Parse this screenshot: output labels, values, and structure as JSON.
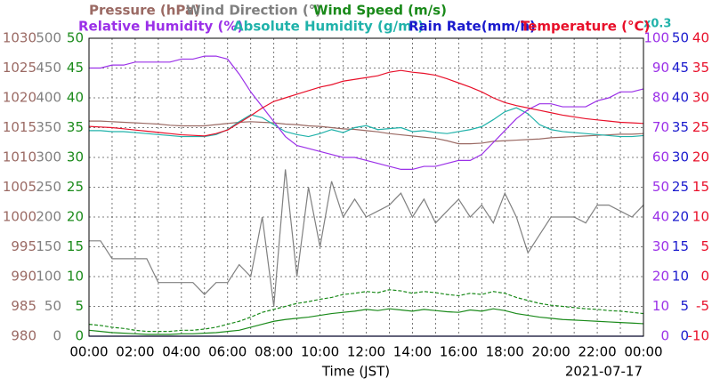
{
  "chart_data": {
    "type": "line",
    "axes": [
      {
        "label": "Pressure (hPa)",
        "color": "#9b6a64",
        "side": "left",
        "lim": [
          980,
          1030
        ],
        "ticks": [
          980,
          985,
          990,
          995,
          1000,
          1005,
          1010,
          1015,
          1020,
          1025,
          1030
        ]
      },
      {
        "label": "Wind Direction (°)",
        "color": "#808080",
        "side": "left",
        "lim": [
          0,
          500
        ],
        "ticks": [
          0,
          50,
          100,
          150,
          200,
          250,
          300,
          350,
          400,
          450,
          500
        ]
      },
      {
        "label": "Wind Speed (m/s)",
        "color": "#1a8a1a",
        "side": "left",
        "lim": [
          0,
          50
        ],
        "ticks": [
          0,
          5,
          10,
          15,
          20,
          25,
          30,
          35,
          40,
          45,
          50
        ]
      },
      {
        "label": "Relative Humidity (%)",
        "color": "#9b30e8",
        "side": "right",
        "lim": [
          0,
          100
        ],
        "ticks": [
          0,
          10,
          20,
          30,
          40,
          50,
          60,
          70,
          80,
          90,
          100
        ]
      },
      {
        "label": "Absolute Humidity (g/m³)",
        "color": "#20b2aa",
        "side": "none",
        "lim": [
          0,
          30
        ],
        "note": "x0.3"
      },
      {
        "label": "Rain Rate(mm/h)",
        "color": "#1a1acd",
        "side": "right",
        "lim": [
          0,
          50
        ],
        "ticks": [
          0,
          5,
          10,
          15,
          20,
          25,
          30,
          35,
          40,
          45,
          50
        ]
      },
      {
        "label": "Temperature (°C)",
        "color": "#e8102a",
        "side": "right",
        "lim": [
          -10,
          40
        ],
        "ticks": [
          -10,
          -5,
          0,
          5,
          10,
          15,
          20,
          25,
          30,
          35,
          40
        ]
      }
    ],
    "x": [
      0,
      0.5,
      1,
      1.5,
      2,
      2.5,
      3,
      3.5,
      4,
      4.5,
      5,
      5.5,
      6,
      6.5,
      7,
      7.5,
      8,
      8.5,
      9,
      9.5,
      10,
      10.5,
      11,
      11.5,
      12,
      12.5,
      13,
      13.5,
      14,
      14.5,
      15,
      15.5,
      16,
      16.5,
      17,
      17.5,
      18,
      18.5,
      19,
      19.5,
      20,
      20.5,
      21,
      21.5,
      22,
      22.5,
      23,
      23.5,
      24
    ],
    "xlim": [
      0,
      24
    ],
    "xticks": [
      {
        "value": 0,
        "label": "00:00"
      },
      {
        "value": 2,
        "label": "02:00"
      },
      {
        "value": 4,
        "label": "04:00"
      },
      {
        "value": 6,
        "label": "06:00"
      },
      {
        "value": 8,
        "label": "08:00"
      },
      {
        "value": 10,
        "label": "10:00"
      },
      {
        "value": 12,
        "label": "12:00"
      },
      {
        "value": 14,
        "label": "14:00"
      },
      {
        "value": 16,
        "label": "16:00"
      },
      {
        "value": 18,
        "label": "18:00"
      },
      {
        "value": 20,
        "label": "20:00"
      },
      {
        "value": 22,
        "label": "22:00"
      },
      {
        "value": 24,
        "label": "00:00"
      }
    ],
    "xminor": [
      1,
      3,
      5,
      7,
      9,
      11,
      13,
      15,
      17,
      19,
      21,
      23
    ],
    "xlabel": "Time (JST)",
    "date": "2021-07-17",
    "grid": true,
    "series": [
      {
        "axis": 1,
        "values": [
          160,
          160,
          130,
          130,
          130,
          130,
          90,
          90,
          90,
          90,
          70,
          90,
          90,
          120,
          100,
          200,
          50,
          280,
          100,
          250,
          150,
          260,
          200,
          230,
          200,
          210,
          220,
          240,
          200,
          230,
          190,
          210,
          230,
          200,
          220,
          190,
          240,
          200,
          140,
          170,
          200,
          200,
          200,
          190,
          220,
          220,
          210,
          200,
          220
        ]
      },
      {
        "axis": 2,
        "dash": true,
        "values": [
          2,
          1.8,
          1.5,
          1.3,
          1,
          0.8,
          0.8,
          0.8,
          1,
          1,
          1.2,
          1.5,
          2,
          2.5,
          3.2,
          4,
          4.5,
          5,
          5.5,
          5.8,
          6.2,
          6.5,
          7,
          7.2,
          7.5,
          7.3,
          7.8,
          7.6,
          7.2,
          7.5,
          7.3,
          7,
          6.8,
          7.2,
          7,
          7.5,
          7.2,
          6.5,
          6,
          5.5,
          5.2,
          5,
          4.8,
          4.6,
          4.5,
          4.3,
          4.2,
          4,
          3.8
        ]
      },
      {
        "axis": 2,
        "values": [
          1,
          0.8,
          0.6,
          0.5,
          0.4,
          0.3,
          0.3,
          0.3,
          0.4,
          0.4,
          0.5,
          0.6,
          0.8,
          1,
          1.5,
          2,
          2.5,
          2.8,
          3,
          3.2,
          3.5,
          3.8,
          4,
          4.2,
          4.5,
          4.3,
          4.6,
          4.4,
          4.2,
          4.5,
          4.3,
          4.1,
          4,
          4.4,
          4.2,
          4.6,
          4.3,
          3.8,
          3.5,
          3.2,
          3,
          2.8,
          2.7,
          2.6,
          2.5,
          2.4,
          2.3,
          2.2,
          2.1
        ]
      },
      {
        "axis": 5,
        "x": [
          0,
          24
        ],
        "values": [
          0,
          0
        ]
      },
      {
        "axis": 0,
        "values": [
          1016.1,
          1016.1,
          1016,
          1015.9,
          1015.8,
          1015.7,
          1015.6,
          1015.4,
          1015.3,
          1015.3,
          1015.3,
          1015.5,
          1015.7,
          1015.9,
          1016,
          1015.9,
          1015.8,
          1015.6,
          1015.5,
          1015.3,
          1015.2,
          1015,
          1014.8,
          1014.7,
          1014.5,
          1014.3,
          1014,
          1013.8,
          1013.6,
          1013.4,
          1013.2,
          1012.8,
          1012.3,
          1012.3,
          1012.4,
          1012.7,
          1012.8,
          1012.9,
          1013,
          1013.1,
          1013.3,
          1013.4,
          1013.5,
          1013.6,
          1013.7,
          1013.8,
          1013.9,
          1013.9,
          1014
        ]
      },
      {
        "axis": 4,
        "values": [
          20.7,
          20.7,
          20.6,
          20.6,
          20.5,
          20.4,
          20.3,
          20.2,
          20.1,
          20.1,
          20.1,
          20.3,
          20.8,
          21.6,
          22.3,
          22,
          21.3,
          20.6,
          20.3,
          20.1,
          20.4,
          20.8,
          20.5,
          21,
          21.2,
          20.8,
          20.9,
          21,
          20.6,
          20.7,
          20.5,
          20.4,
          20.6,
          20.8,
          21.1,
          21.8,
          22.6,
          23,
          22.4,
          21.3,
          20.8,
          20.6,
          20.5,
          20.4,
          20.3,
          20.2,
          20.1,
          20.1,
          20.2
        ]
      },
      {
        "axis": 3,
        "values": [
          90,
          90,
          91,
          91,
          92,
          92,
          92,
          92,
          93,
          93,
          94,
          94,
          93,
          88,
          82,
          77,
          72,
          67,
          64,
          63,
          62,
          61,
          60,
          60,
          59,
          58,
          57,
          56,
          56,
          57,
          57,
          58,
          59,
          59,
          61,
          65,
          69,
          73,
          76,
          78,
          78,
          77,
          77,
          77,
          79,
          80,
          82,
          82,
          83
        ]
      },
      {
        "axis": 6,
        "values": [
          25.2,
          25.1,
          25,
          24.8,
          24.6,
          24.4,
          24.2,
          24,
          23.8,
          23.7,
          23.6,
          24,
          24.6,
          25.8,
          27,
          28.3,
          29.4,
          30,
          30.6,
          31.2,
          31.8,
          32.2,
          32.8,
          33.1,
          33.4,
          33.7,
          34.3,
          34.6,
          34.3,
          34.1,
          33.8,
          33.2,
          32.5,
          31.8,
          31,
          30,
          29.2,
          28.7,
          28.3,
          27.9,
          27.5,
          27.1,
          26.8,
          26.5,
          26.3,
          26.1,
          25.9,
          25.8,
          25.7
        ]
      }
    ]
  }
}
